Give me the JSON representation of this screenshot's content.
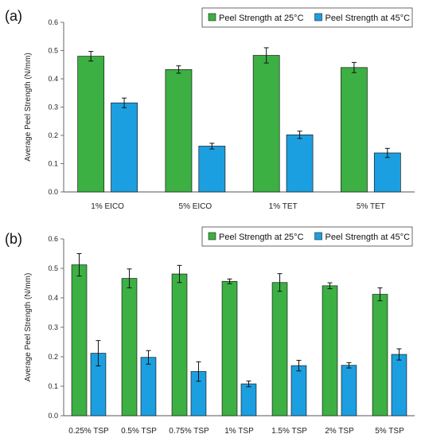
{
  "chart_data": [
    {
      "type": "bar",
      "panel_label": "(a)",
      "title": "",
      "xlabel": "",
      "ylabel": "Average Peel Strength (N/mm)",
      "ylim": [
        0,
        0.6
      ],
      "yticks": [
        "0.0",
        "0.1",
        "0.2",
        "0.3",
        "0.4",
        "0.5",
        "0.6"
      ],
      "grid": false,
      "legend_position": "top-right",
      "categories": [
        "1% EICO",
        "5% EICO",
        "1% TET",
        "5% TET"
      ],
      "series": [
        {
          "name": "Peel Strength at 25°C",
          "color": "#3cb043",
          "values": [
            0.48,
            0.433,
            0.483,
            0.44
          ],
          "errors": [
            0.017,
            0.013,
            0.027,
            0.018
          ]
        },
        {
          "name": "Peel Strength at 45°C",
          "color": "#1b9fe0",
          "values": [
            0.315,
            0.162,
            0.202,
            0.138
          ],
          "errors": [
            0.017,
            0.01,
            0.013,
            0.016
          ]
        }
      ]
    },
    {
      "type": "bar",
      "panel_label": "(b)",
      "title": "",
      "xlabel": "",
      "ylabel": "Average Peel Strength (N/mm)",
      "ylim": [
        0,
        0.6
      ],
      "yticks": [
        "0.0",
        "0.1",
        "0.2",
        "0.3",
        "0.4",
        "0.5",
        "0.6"
      ],
      "grid": false,
      "legend_position": "top-right",
      "categories": [
        "0.25% TSP",
        "0.5% TSP",
        "0.75% TSP",
        "1% TSP",
        "1.5% TSP",
        "2% TSP",
        "5% TSP"
      ],
      "series": [
        {
          "name": "Peel Strength at 25°C",
          "color": "#3cb043",
          "values": [
            0.512,
            0.466,
            0.481,
            0.456,
            0.452,
            0.441,
            0.412
          ],
          "errors": [
            0.038,
            0.032,
            0.029,
            0.008,
            0.03,
            0.01,
            0.022
          ]
        },
        {
          "name": "Peel Strength at 45°C",
          "color": "#1b9fe0",
          "values": [
            0.212,
            0.198,
            0.15,
            0.108,
            0.17,
            0.171,
            0.208
          ],
          "errors": [
            0.043,
            0.023,
            0.033,
            0.01,
            0.018,
            0.009,
            0.019
          ]
        }
      ]
    }
  ]
}
